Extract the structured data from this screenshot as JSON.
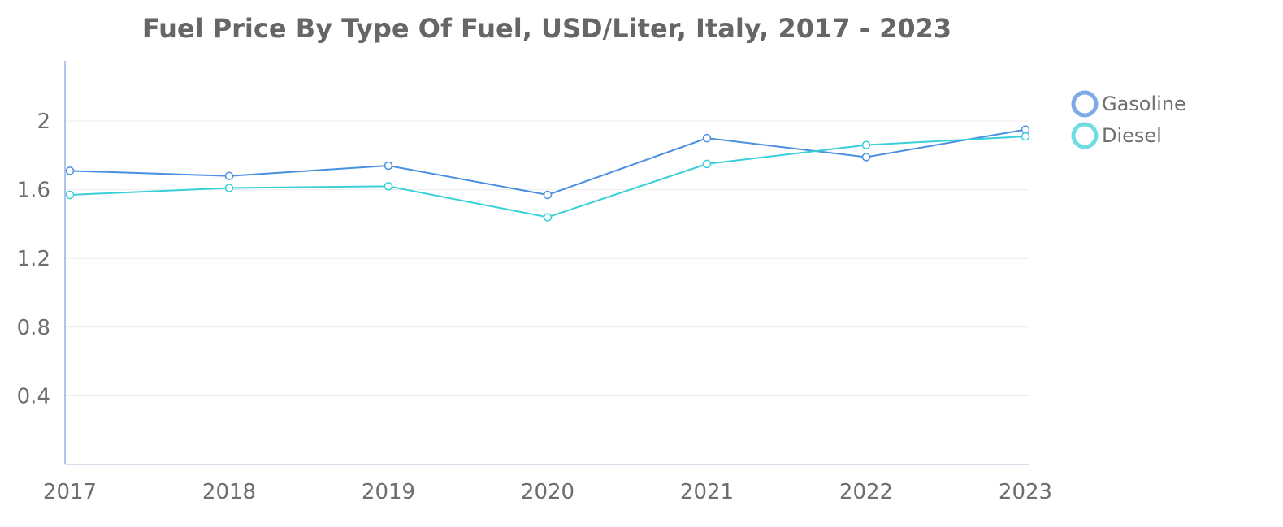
{
  "chart_data": {
    "type": "line",
    "title": "Fuel Price By Type Of Fuel, USD/Liter, Italy, 2017 - 2023",
    "xlabel": "",
    "ylabel": "",
    "x": [
      "2017",
      "2018",
      "2019",
      "2020",
      "2021",
      "2022",
      "2023"
    ],
    "ylim": [
      0,
      2.35
    ],
    "yticks": [
      0.4,
      0.8,
      1.2,
      1.6,
      2
    ],
    "ytick_labels": [
      "0.4",
      "0.8",
      "1.2",
      "1.6",
      "2"
    ],
    "grid": "horizontal",
    "legend_position": "top-right",
    "series": [
      {
        "name": "Gasoline",
        "color": "#4a8fe0",
        "legend_color": "#7fa9e8",
        "values": [
          1.71,
          1.68,
          1.74,
          1.57,
          1.9,
          1.79,
          1.95
        ]
      },
      {
        "name": "Diesel",
        "color": "#38cfd9",
        "legend_color": "#6fdbe3",
        "values": [
          1.57,
          1.61,
          1.62,
          1.44,
          1.75,
          1.86,
          1.91
        ]
      }
    ]
  }
}
